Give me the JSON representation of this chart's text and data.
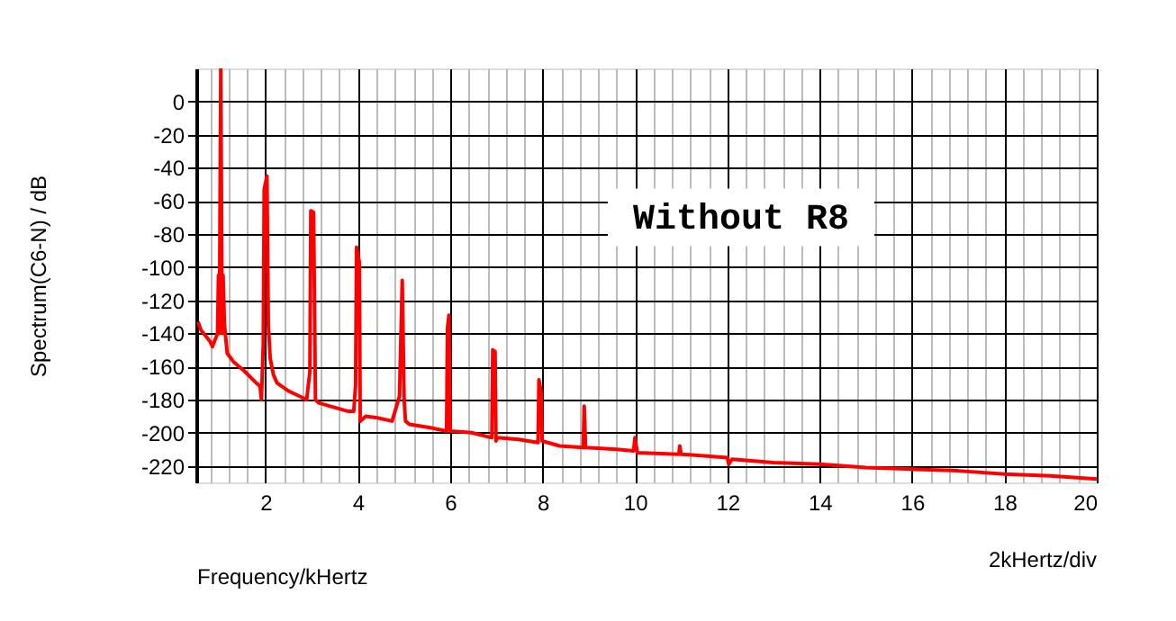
{
  "chart_data": {
    "type": "line",
    "xlabel": "Frequency/kHertz",
    "ylabel": "Spectrum(C6-N) / dB",
    "annotations": [
      "Without R8",
      "2kHertz/div"
    ],
    "xlim": [
      0.5,
      20
    ],
    "ylim": [
      -230,
      20
    ],
    "xticks": [
      {
        "value": 0.8,
        "label": null
      },
      {
        "value": 1.2,
        "label": null
      },
      {
        "value": 1.6,
        "label": null
      },
      2,
      {
        "value": 2.4,
        "label": null
      },
      {
        "value": 2.8,
        "label": null
      },
      {
        "value": 3.2,
        "label": null
      },
      {
        "value": 3.6,
        "label": null
      },
      4,
      {
        "value": 4.4,
        "label": null
      },
      {
        "value": 4.8,
        "label": null
      },
      {
        "value": 5.2,
        "label": null
      },
      {
        "value": 5.6,
        "label": null
      },
      6,
      {
        "value": 6.4,
        "label": null
      },
      {
        "value": 6.8,
        "label": null
      },
      {
        "value": 7.2,
        "label": null
      },
      {
        "value": 7.6,
        "label": null
      },
      8,
      {
        "value": 8.4,
        "label": null
      },
      {
        "value": 8.8,
        "label": null
      },
      {
        "value": 9.2,
        "label": null
      },
      {
        "value": 9.6,
        "label": null
      },
      10,
      {
        "value": 10.4,
        "label": null
      },
      {
        "value": 10.8,
        "label": null
      },
      {
        "value": 11.2,
        "label": null
      },
      {
        "value": 11.6,
        "label": null
      },
      12,
      {
        "value": 12.4,
        "label": null
      },
      {
        "value": 12.8,
        "label": null
      },
      {
        "value": 13.2,
        "label": null
      },
      {
        "value": 13.6,
        "label": null
      },
      14,
      {
        "value": 14.4,
        "label": null
      },
      {
        "value": 14.8,
        "label": null
      },
      {
        "value": 15.2,
        "label": null
      },
      {
        "value": 15.6,
        "label": null
      },
      16,
      {
        "value": 16.4,
        "label": null
      },
      {
        "value": 16.8,
        "label": null
      },
      {
        "value": 17.2,
        "label": null
      },
      {
        "value": 17.6,
        "label": null
      },
      18,
      {
        "value": 18.4,
        "label": null
      },
      {
        "value": 18.8,
        "label": null
      },
      {
        "value": 19.2,
        "label": null
      },
      {
        "value": 19.6,
        "label": null
      },
      20
    ],
    "yticks": [
      0,
      -20,
      -40,
      -60,
      -80,
      -100,
      -120,
      -140,
      -160,
      -180,
      -200,
      -220
    ],
    "grid": true,
    "marker": "none",
    "line_style": "solid",
    "series": [
      {
        "color": "#ff0000",
        "x": [
          0.54,
          0.6,
          0.8,
          0.85,
          0.96,
          0.98,
          1.0,
          1.03,
          1.06,
          1.08,
          1.11,
          1.17,
          1.3,
          1.55,
          1.8,
          1.88,
          1.91,
          1.95,
          1.97,
          2.03,
          2.06,
          2.1,
          2.17,
          2.25,
          2.51,
          2.89,
          2.96,
          2.98,
          3.04,
          3.08,
          3.15,
          3.4,
          3.78,
          3.91,
          3.95,
          3.97,
          4.03,
          4.05,
          4.17,
          4.42,
          4.74,
          4.9,
          4.96,
          5.0,
          5.03,
          5.12,
          5.57,
          5.92,
          5.94,
          5.97,
          6.0,
          6.46,
          6.9,
          6.92,
          6.97,
          6.99,
          7.02,
          7.48,
          7.9,
          7.92,
          7.97,
          7.99,
          8.37,
          8.88,
          8.9,
          8.93,
          9.6,
          9.97,
          10.0,
          10.05,
          10.95,
          10.97,
          11.0,
          12.0,
          12.03,
          12.1,
          13,
          14,
          15,
          16,
          17,
          18,
          19,
          20
        ],
        "values": [
          -133,
          -138,
          -145,
          -148,
          -140,
          -105,
          -140,
          20,
          -140,
          -105,
          -135,
          -152,
          -157,
          -163,
          -170,
          -172,
          -180,
          -147,
          -53,
          -45,
          -135,
          -155,
          -165,
          -170,
          -175,
          -180,
          -163,
          -66,
          -67,
          -180,
          -182,
          -184,
          -187,
          -187,
          -171,
          -88,
          -97,
          -193,
          -190,
          -191,
          -193,
          -178,
          -108,
          -180,
          -193,
          -195,
          -197,
          -199,
          -137,
          -129,
          -199,
          -200,
          -203,
          -150,
          -151,
          -205,
          -203,
          -204,
          -206,
          -168,
          -176,
          -205,
          -208,
          -209,
          -184,
          -209,
          -210,
          -211,
          -203,
          -212,
          -213,
          -208,
          -213,
          -215,
          -219,
          -216,
          -218,
          -219,
          -221,
          -222,
          -223,
          -225,
          -226,
          -228
        ]
      }
    ]
  }
}
